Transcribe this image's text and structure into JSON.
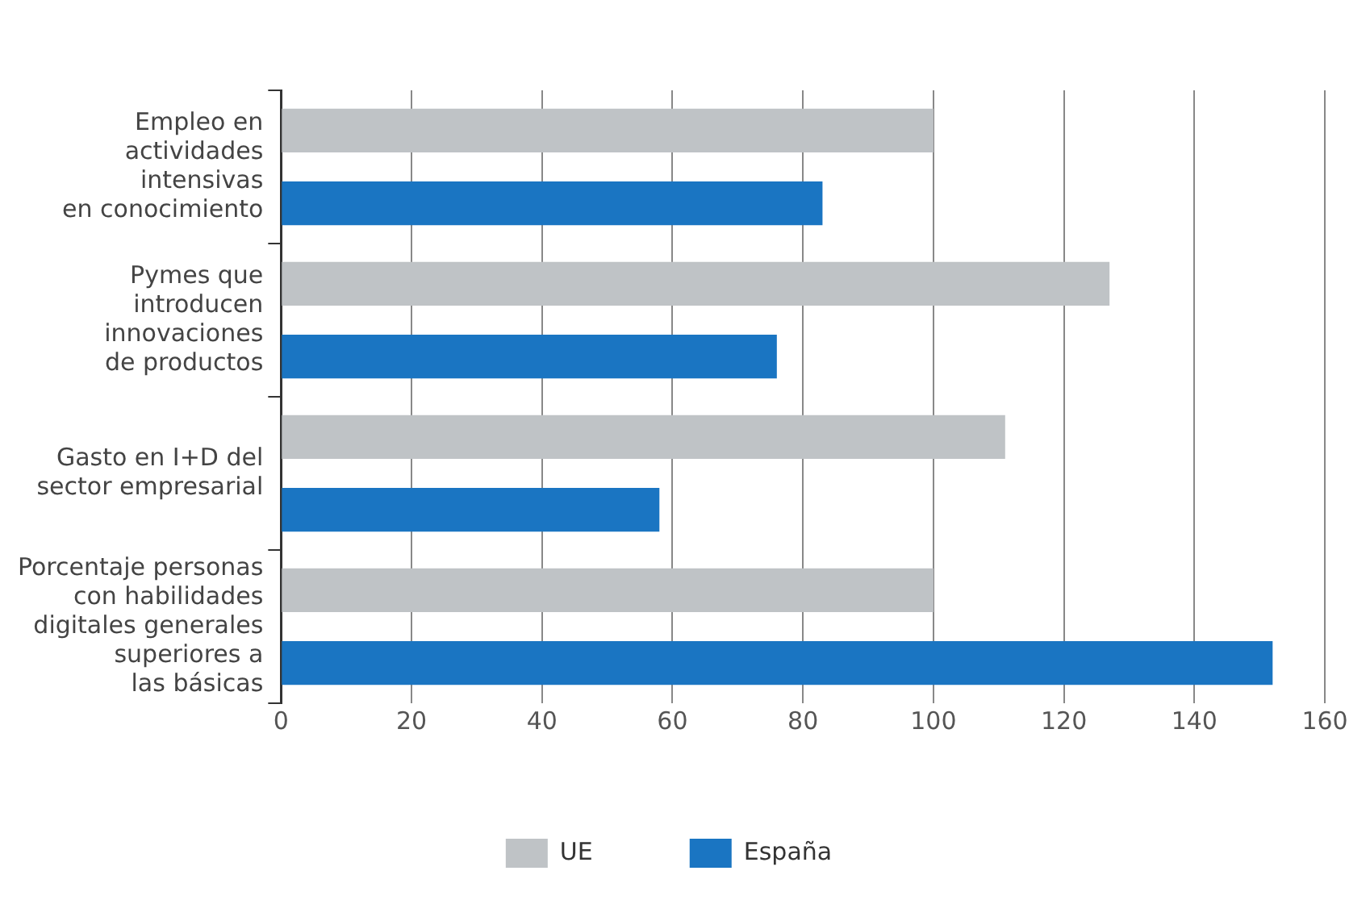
{
  "chart_data": {
    "type": "bar",
    "orientation": "horizontal",
    "categories": [
      "Empleo en\nactividades\nintensivas\nen conocimiento",
      "Pymes que\nintroducen\ninnovaciones\nde productos",
      "Gasto en I+D del\nsector empresarial",
      "Porcentaje personas\ncon habilidades\ndigitales generales\nsuperiores a\nlas básicas"
    ],
    "series": [
      {
        "name": "UE",
        "color": "#bfc3c6",
        "values": [
          100,
          127,
          111,
          100
        ]
      },
      {
        "name": "España",
        "color": "#1a75c2",
        "values": [
          83,
          76,
          58,
          152
        ]
      }
    ],
    "xlim": [
      0,
      160
    ],
    "xticks": [
      0,
      20,
      40,
      60,
      80,
      100,
      120,
      140,
      160
    ],
    "grid": "x",
    "legend": "bottom"
  }
}
